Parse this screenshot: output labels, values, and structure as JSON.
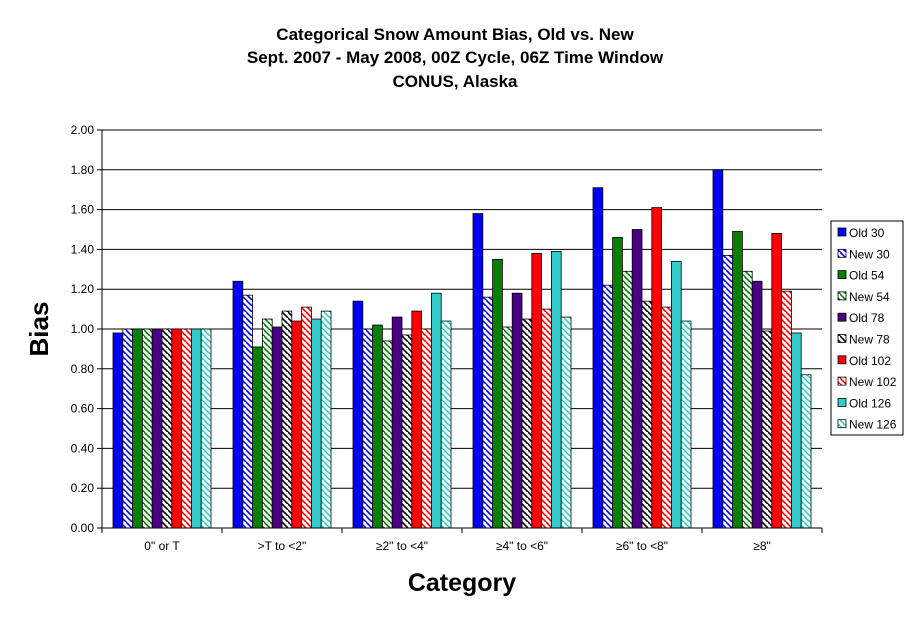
{
  "chart_data": {
    "type": "bar",
    "title": [
      "Categorical Snow Amount Bias, Old vs. New",
      "Sept. 2007 - May 2008, 00Z Cycle, 06Z Time Window",
      "CONUS, Alaska"
    ],
    "xlabel": "Category",
    "ylabel": "Bias",
    "ylim": [
      0,
      2.0
    ],
    "yticks": [
      "0.00",
      "0.20",
      "0.40",
      "0.60",
      "0.80",
      "1.00",
      "1.20",
      "1.40",
      "1.60",
      "1.80",
      "2.00"
    ],
    "grid": true,
    "legend_position": "right",
    "categories": [
      "0\" or T",
      ">T to <2\"",
      "≥2\" to <4\"",
      "≥4\" to <6\"",
      "≥6\" to <8\"",
      "≥8\""
    ],
    "series": [
      {
        "name": "Old 30",
        "color": "#0000FF",
        "pattern": "solid",
        "values": [
          0.98,
          1.24,
          1.14,
          1.58,
          1.71,
          1.8
        ]
      },
      {
        "name": "New 30",
        "color": "#0000FF",
        "pattern": "hatch",
        "values": [
          1.0,
          1.17,
          1.0,
          1.16,
          1.22,
          1.37
        ]
      },
      {
        "name": "Old 54",
        "color": "#008000",
        "pattern": "solid",
        "values": [
          1.0,
          0.91,
          1.02,
          1.35,
          1.46,
          1.49
        ]
      },
      {
        "name": "New 54",
        "color": "#008000",
        "pattern": "hatch",
        "values": [
          1.0,
          1.05,
          0.94,
          1.01,
          1.29,
          1.29
        ]
      },
      {
        "name": "Old 78",
        "color": "#4B0082",
        "pattern": "solid",
        "values": [
          1.0,
          1.01,
          1.06,
          1.18,
          1.5,
          1.24
        ]
      },
      {
        "name": "New 78",
        "color": "#000000",
        "pattern": "hatch",
        "values": [
          1.0,
          1.09,
          0.97,
          1.05,
          1.14,
          0.99
        ]
      },
      {
        "name": "Old 102",
        "color": "#FF0000",
        "pattern": "solid",
        "values": [
          1.0,
          1.04,
          1.09,
          1.38,
          1.61,
          1.48
        ]
      },
      {
        "name": "New 102",
        "color": "#FF0000",
        "pattern": "hatch",
        "values": [
          1.0,
          1.11,
          1.0,
          1.1,
          1.11,
          1.19
        ]
      },
      {
        "name": "Old 126",
        "color": "#33CCCC",
        "pattern": "solid",
        "values": [
          1.0,
          1.05,
          1.18,
          1.39,
          1.34,
          0.98
        ]
      },
      {
        "name": "New 126",
        "color": "#33CCCC",
        "pattern": "hatch",
        "values": [
          1.0,
          1.09,
          1.04,
          1.06,
          1.04,
          0.77
        ]
      }
    ]
  }
}
